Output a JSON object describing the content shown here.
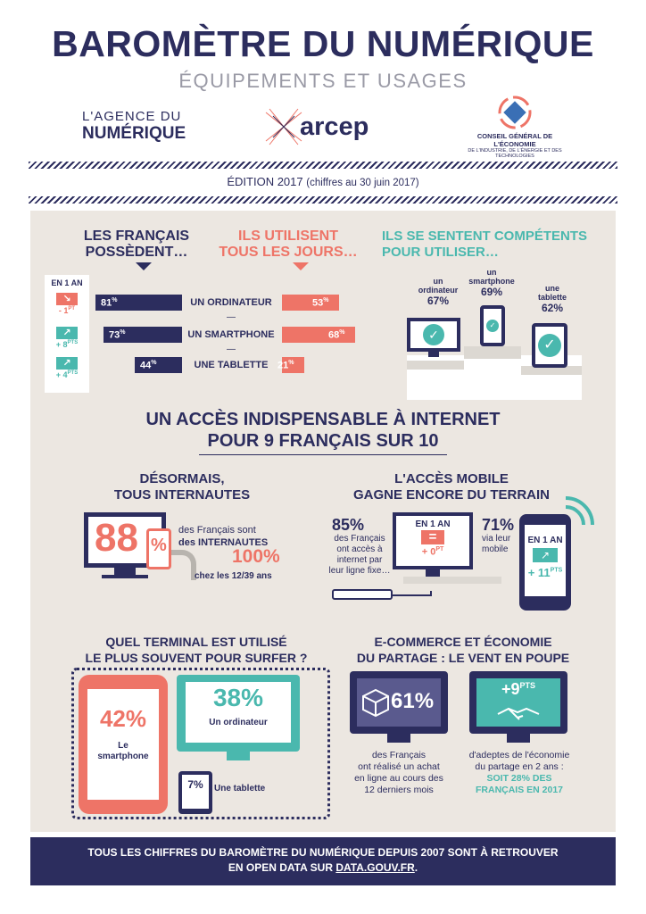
{
  "header": {
    "title": "BAROMÈTRE DU NUMÉRIQUE",
    "subtitle": "ÉQUIPEMENTS ET USAGES",
    "logo1_line1": "L'AGENCE DU",
    "logo1_line2": "NUMÉRIQUE",
    "logo2": "arcep",
    "logo3_line1": "CONSEIL GÉNÉRAL DE L'ÉCONOMIE",
    "logo3_line2": "DE L'INDUSTRIE, DE L'ÉNERGIE ET DES TECHNOLOGIES",
    "edition": "ÉDITION 2017",
    "edition_note": "(chiffres au 30 juin 2017)"
  },
  "equipment": {
    "heading_own_1": "LES FRANÇAIS",
    "heading_own_2": "POSSÈDENT…",
    "heading_use_1": "ILS UTILISENT",
    "heading_use_2": "TOUS LES JOURS…",
    "heading_comp_1": "ILS SE SENTENT COMPÉTENTS",
    "heading_comp_2": "POUR UTILISER…",
    "evo_title": "EN 1 AN",
    "dash": "—",
    "rows": [
      {
        "label": "UN ORDINATEUR",
        "own": "81",
        "use": "53",
        "own_value": 81,
        "use_value": 53,
        "evo": "- 1",
        "evo_unit": "PT",
        "evo_dir": "down"
      },
      {
        "label": "UN SMARTPHONE",
        "own": "73",
        "use": "68",
        "own_value": 73,
        "use_value": 68,
        "evo": "+ 8",
        "evo_unit": "PTS",
        "evo_dir": "up"
      },
      {
        "label": "UNE TABLETTE",
        "own": "44",
        "use": "21",
        "own_value": 44,
        "use_value": 21,
        "evo": "+ 4",
        "evo_unit": "PTS",
        "evo_dir": "up"
      }
    ],
    "pct": "%",
    "competence": [
      {
        "line1": "un",
        "line2": "ordinateur",
        "value": "67%"
      },
      {
        "line1": "un",
        "line2": "smartphone",
        "value": "69%"
      },
      {
        "line1": "une",
        "line2": "tablette",
        "value": "62%"
      }
    ]
  },
  "internet": {
    "heading_1": "UN ACCÈS INDISPENSABLE À INTERNET",
    "heading_2": "POUR 9 FRANÇAIS SUR 10",
    "users_heading_1": "DÉSORMAIS,",
    "users_heading_2": "TOUS INTERNAUTES",
    "users_value": "88",
    "users_pct": "%",
    "users_text_1": "des Français sont",
    "users_text_2": "des INTERNAUTES",
    "young_value": "100%",
    "young_text": "chez les 12/39 ans",
    "mobile_heading_1": "L'ACCÈS MOBILE",
    "mobile_heading_2": "GAGNE ENCORE DU TERRAIN",
    "fixed_value": "85%",
    "fixed_text_1": "des Français",
    "fixed_text_2": "ont accès à",
    "fixed_text_3": "internet par",
    "fixed_text_4": "leur ligne fixe…",
    "fixed_evo_title": "EN 1 AN",
    "fixed_evo_symbol": "=",
    "fixed_evo": "+ 0",
    "fixed_evo_unit": "PT",
    "mobile_value": "71%",
    "mobile_text_1": "via leur",
    "mobile_text_2": "mobile",
    "mobile_evo_title": "EN 1 AN",
    "mobile_evo": "+ 11",
    "mobile_evo_unit": "PTS"
  },
  "terminal": {
    "heading_1": "QUEL TERMINAL EST UTILISÉ",
    "heading_2": "LE PLUS SOUVENT POUR SURFER ?",
    "smartphone_value": "42%",
    "smartphone_label_1": "Le",
    "smartphone_label_2": "smartphone",
    "computer_value": "38%",
    "computer_label": "Un ordinateur",
    "tablet_value": "7%",
    "tablet_label": "Une tablette"
  },
  "ecommerce": {
    "heading_1": "E-COMMERCE ET ÉCONOMIE",
    "heading_2": "DU PARTAGE : LE VENT EN POUPE",
    "purchase_value": "61%",
    "purchase_text_1": "des Français",
    "purchase_text_2": "ont réalisé un achat",
    "purchase_text_3": "en ligne au cours des",
    "purchase_text_4": "12 derniers mois",
    "sharing_value": "+9",
    "sharing_unit": "PTS",
    "sharing_text_1": "d'adeptes de l'économie",
    "sharing_text_2": "du partage en 2 ans :",
    "sharing_text_3": "SOIT 28% DES",
    "sharing_text_4": "FRANÇAIS EN 2017"
  },
  "footer": {
    "line1": "TOUS LES CHIFFRES DU BAROMÈTRE DU NUMÉRIQUE DEPUIS 2007 SONT À RETROUVER",
    "line2_prefix": "EN OPEN DATA SUR ",
    "line2_link": "DATA.GOUV.FR",
    "line2_suffix": "."
  },
  "colors": {
    "navy": "#2c2d5e",
    "coral": "#ee7467",
    "teal": "#4ab8ae",
    "panel": "#ece7e1",
    "grey": "#9a9aa6"
  }
}
